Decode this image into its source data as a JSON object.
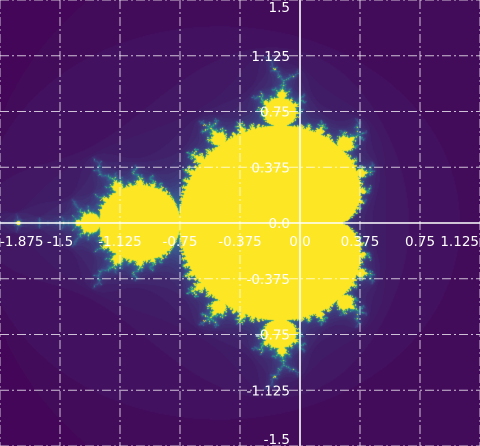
{
  "chart_data": {
    "type": "heatmap",
    "title": "",
    "xlabel": "",
    "ylabel": "",
    "xlim": [
      -1.875,
      1.125
    ],
    "ylim": [
      -1.5,
      1.5
    ],
    "grid": true,
    "x_ticks": [
      -1.875,
      -1.5,
      -1.125,
      -0.75,
      -0.375,
      0.0,
      0.375,
      0.75,
      1.125
    ],
    "x_tick_labels": [
      "-1.875",
      "-1.5",
      "-1.125",
      "-0.75",
      "-0.375",
      "0.0",
      "0.375",
      "0.75",
      "1.125"
    ],
    "y_ticks": [
      1.5,
      1.125,
      0.75,
      0.375,
      0.0,
      -0.375,
      -0.75,
      -1.125,
      -1.5
    ],
    "y_tick_labels": [
      "1.5",
      "1.125",
      "0.75",
      "0.375",
      "0.0",
      "-0.375",
      "-0.75",
      "-1.125",
      "-1.5"
    ],
    "fractal": "mandelbrot",
    "max_iterations": 60,
    "colormap": "viridis",
    "colors": {
      "background": "#440154",
      "set_interior": "#fde725",
      "axes": "#ffffff",
      "grid": "#ffffff"
    }
  }
}
